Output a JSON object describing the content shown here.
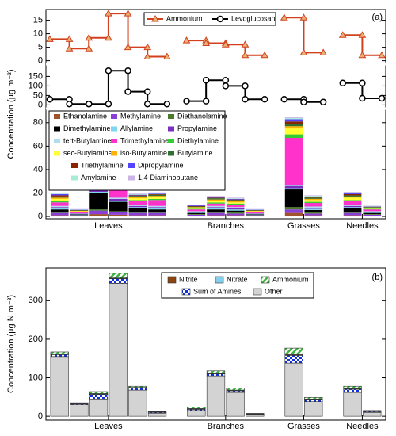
{
  "chart_data": [
    {
      "type": "step",
      "panel_label": "(a)",
      "legend": "top-center",
      "ylim": [
        -1,
        19
      ],
      "yticks": [
        0,
        5,
        10,
        15
      ],
      "series": [
        {
          "name": "Ammonium",
          "color": "#d2401e",
          "marker_color": "#e8b074",
          "marker": "triangle",
          "values": [
            8,
            4.5,
            8.5,
            17.5,
            5,
            1.5,
            7.5,
            6.5,
            6,
            2,
            16,
            3,
            9.5,
            2
          ]
        }
      ]
    },
    {
      "type": "step",
      "ylim": [
        -15,
        210
      ],
      "yticks": [
        0,
        50,
        100,
        150
      ],
      "series": [
        {
          "name": "Levoglucosan",
          "color": "#000000",
          "marker_color": "#ffffff",
          "marker": "circle",
          "values": [
            30,
            5,
            5,
            180,
            70,
            5,
            20,
            130,
            100,
            30,
            30,
            15,
            115,
            35
          ]
        }
      ]
    },
    {
      "type": "stacked_bar",
      "ylabel": "Concentration (µg m⁻³)",
      "legend": "top-left",
      "ylim": [
        -2,
        90
      ],
      "yticks": [
        0,
        20,
        40,
        60,
        80
      ],
      "groups": [
        {
          "label": "Leaves",
          "count": 6
        },
        {
          "label": "Branches",
          "count": 4
        },
        {
          "label": "Grasses",
          "count": 2
        },
        {
          "label": "Needles",
          "count": 2
        }
      ],
      "series": [
        {
          "name": "Ethanolamine",
          "color": "#a0522d",
          "values": [
            1,
            0.5,
            2,
            1.5,
            1,
            1,
            0.5,
            1,
            1,
            0.5,
            3,
            1,
            1,
            0.5
          ]
        },
        {
          "name": "Methylamine",
          "color": "#8a3fd9",
          "values": [
            2,
            0.5,
            3,
            2,
            2,
            2,
            1,
            2,
            1.5,
            0.5,
            3,
            1.5,
            2,
            1
          ]
        },
        {
          "name": "Diethanolamine",
          "color": "#4a7a2a",
          "values": [
            1,
            0.3,
            1,
            1,
            1,
            1,
            0.5,
            1,
            1,
            0.3,
            2,
            1,
            1,
            0.5
          ]
        },
        {
          "name": "Dimethylamine",
          "color": "#000000",
          "values": [
            2,
            0.5,
            14,
            8,
            3,
            2,
            1,
            2,
            1.5,
            0.5,
            15,
            2,
            3,
            1
          ]
        },
        {
          "name": "Allylamine",
          "color": "#7fd6f0",
          "values": [
            1,
            0.3,
            1,
            1,
            1,
            1,
            0.5,
            1,
            1,
            0.3,
            1,
            1,
            1,
            0.5
          ]
        },
        {
          "name": "Propylamine",
          "color": "#7b2fbf",
          "values": [
            1,
            0.3,
            2,
            1.5,
            1,
            1,
            0.5,
            1,
            1,
            0.3,
            2,
            1,
            1,
            0.5
          ]
        },
        {
          "name": "tert-Butylamine",
          "color": "#b0dcef",
          "values": [
            1,
            0.3,
            1,
            1,
            1,
            1,
            0.5,
            1,
            1,
            0.3,
            1,
            1,
            1,
            0.5
          ]
        },
        {
          "name": "Trimethylamine",
          "color": "#ff33cc",
          "values": [
            3,
            1,
            8,
            7,
            3,
            5,
            1.5,
            2,
            2,
            1,
            40,
            3,
            3,
            1.5
          ]
        },
        {
          "name": "Diethylamine",
          "color": "#33cc33",
          "values": [
            1,
            0.3,
            2,
            1.5,
            1,
            1,
            0.5,
            1,
            1,
            0.3,
            3,
            1,
            1,
            0.5
          ]
        },
        {
          "name": "sec-Butylamine",
          "color": "#ffff33",
          "values": [
            2,
            0.5,
            4,
            3,
            1.5,
            1.5,
            1,
            1.5,
            1,
            0.5,
            5,
            1.5,
            2,
            0.5
          ]
        },
        {
          "name": "iso-Butylamine",
          "color": "#ffb300",
          "values": [
            1,
            0.3,
            2,
            1.5,
            1,
            1,
            0.5,
            1,
            1,
            0.3,
            2,
            1,
            1,
            0.5
          ]
        },
        {
          "name": "Butylamine",
          "color": "#2f6f2f",
          "values": [
            1,
            0.3,
            2,
            1.5,
            1,
            1,
            0.5,
            1,
            1,
            0.3,
            2,
            1,
            1,
            0.5
          ]
        },
        {
          "name": "Triethylamine",
          "color": "#8b2500",
          "values": [
            1,
            0.3,
            2,
            1.5,
            0.5,
            0.5,
            0.5,
            0.5,
            0.5,
            0.3,
            2,
            0.5,
            1,
            0.3
          ]
        },
        {
          "name": "Dipropylamine",
          "color": "#5544ff",
          "values": [
            1,
            0.3,
            2,
            1.5,
            0.5,
            0.5,
            0.5,
            0.5,
            0.5,
            0.3,
            2,
            0.5,
            1,
            0.3
          ]
        },
        {
          "name": "Amylamine",
          "color": "#a8ecd8",
          "values": [
            0.5,
            0.3,
            0.5,
            0.5,
            0.5,
            0.5,
            0.3,
            0.5,
            0.5,
            0.3,
            1,
            0.5,
            0.5,
            0.3
          ]
        },
        {
          "name": "1,4-Diaminobutane",
          "color": "#ccb3e6",
          "values": [
            0.5,
            0.3,
            0.5,
            0.5,
            0.5,
            0.5,
            0.3,
            0.5,
            0.5,
            0.3,
            1,
            0.5,
            0.5,
            0.3
          ]
        }
      ]
    },
    {
      "type": "stacked_bar",
      "panel_label": "(b)",
      "ylabel": "Concentration (µg N m⁻³)",
      "legend": "top-right",
      "ylim": [
        -10,
        385
      ],
      "yticks": [
        0,
        100,
        200,
        300
      ],
      "groups": [
        {
          "label": "Leaves",
          "count": 6
        },
        {
          "label": "Branches",
          "count": 4
        },
        {
          "label": "Grasses",
          "count": 2
        },
        {
          "label": "Needles",
          "count": 2
        }
      ],
      "series": [
        {
          "name": "Other",
          "color": "#d3d3d3",
          "values": [
            155,
            30,
            45,
            345,
            68,
            8,
            15,
            105,
            62,
            5,
            138,
            38,
            62,
            10
          ]
        },
        {
          "name": "Sum of Amines",
          "color": "#1030e0",
          "pattern": "checker",
          "values": [
            5,
            2,
            12,
            12,
            5,
            2,
            3,
            5,
            4,
            1,
            20,
            5,
            8,
            2
          ]
        },
        {
          "name": "Nitrite",
          "color": "#8b4513",
          "values": [
            1,
            0.5,
            1,
            1,
            1,
            0.5,
            1,
            1,
            1,
            0.3,
            2,
            1,
            1,
            0.5
          ]
        },
        {
          "name": "Nitrate",
          "color": "#87ceeb",
          "values": [
            1,
            0.5,
            1,
            1,
            1,
            0.5,
            1,
            1,
            1,
            0.3,
            2,
            1,
            1,
            0.5
          ]
        },
        {
          "name": "Ammonium",
          "color": "#3cb43c",
          "pattern": "hatch",
          "values": [
            5,
            2,
            5,
            12,
            3,
            1,
            4,
            6,
            5,
            1,
            15,
            4,
            6,
            2
          ]
        }
      ]
    }
  ]
}
